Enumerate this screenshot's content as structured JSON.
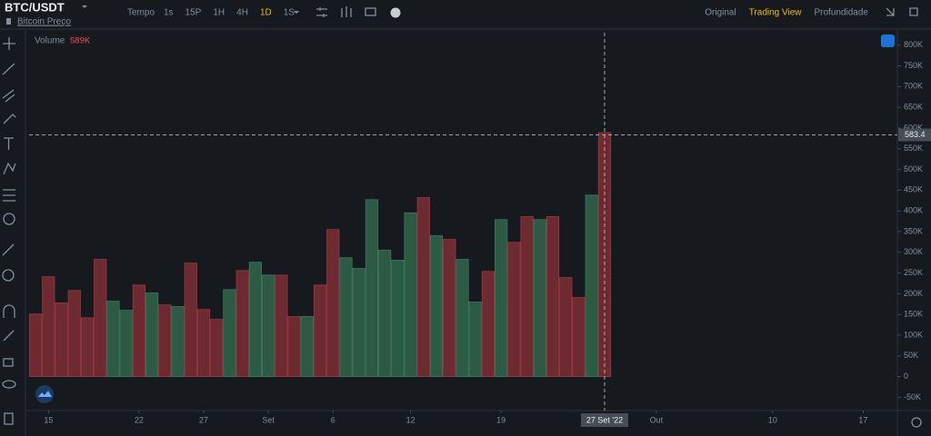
{
  "header": {
    "symbol": "BTC/USDT",
    "subtitle": "Bitcoin Preço",
    "time_label": "Tempo",
    "intervals": [
      "1s",
      "15P",
      "1H",
      "4H",
      "1D",
      "1S"
    ],
    "active_interval": 4,
    "views": [
      "Original",
      "Trading View",
      "Profundidade"
    ],
    "active_view": 1
  },
  "chart_data": {
    "type": "bar",
    "series": [
      {
        "name": "Volume",
        "legend_value": "589K",
        "values": [
          151,
          241,
          178,
          208,
          142,
          283,
          182,
          160,
          221,
          202,
          173,
          169,
          274,
          162,
          138,
          210,
          256,
          276,
          245,
          245,
          145,
          145,
          221,
          355,
          287,
          261,
          427,
          305,
          281,
          395,
          432,
          340,
          331,
          283,
          180,
          254,
          379,
          324,
          386,
          379,
          386,
          239,
          191,
          438,
          589
        ],
        "colors": [
          "#6e2a31",
          "#6e2a31",
          "#6e2a31",
          "#6e2a31",
          "#6e2a31",
          "#6e2a31",
          "#2d5a44",
          "#2d5a44",
          "#6e2a31",
          "#2d5a44",
          "#6e2a31",
          "#2d5a44",
          "#6e2a31",
          "#6e2a31",
          "#6e2a31",
          "#2d5a44",
          "#6e2a31",
          "#2d5a44",
          "#2d5a44",
          "#6e2a31",
          "#6e2a31",
          "#2d5a44",
          "#6e2a31",
          "#6e2a31",
          "#2d5a44",
          "#2d5a44",
          "#2d5a44",
          "#2d5a44",
          "#2d5a44",
          "#2d5a44",
          "#6e2a31",
          "#2d5a44",
          "#6e2a31",
          "#2d5a44",
          "#2d5a44",
          "#6e2a31",
          "#2d5a44",
          "#6e2a31",
          "#6e2a31",
          "#2d5a44",
          "#6e2a31",
          "#6e2a31",
          "#6e2a31",
          "#2d5a44",
          "#6e2a31"
        ]
      }
    ],
    "xlim": [
      -0.5,
      66.5
    ],
    "xticks": [
      {
        "value": 1,
        "label": "15"
      },
      {
        "value": 8,
        "label": "22"
      },
      {
        "value": 13,
        "label": "27"
      },
      {
        "value": 18,
        "label": "Set"
      },
      {
        "value": 23,
        "label": "6"
      },
      {
        "value": 29,
        "label": "12"
      },
      {
        "value": 36,
        "label": "19"
      },
      {
        "value": 44,
        "label": "27 Set '22"
      },
      {
        "value": 48,
        "label": "Out"
      },
      {
        "value": 57,
        "label": "10"
      },
      {
        "value": 64,
        "label": "17"
      }
    ],
    "highlight_xtick": 7,
    "ylim": [
      -60,
      830
    ],
    "yticks": [
      {
        "value": 800,
        "label": "800K"
      },
      {
        "value": 750,
        "label": "750K"
      },
      {
        "value": 700,
        "label": "700K"
      },
      {
        "value": 650,
        "label": "650K"
      },
      {
        "value": 600,
        "label": "600K"
      },
      {
        "value": 550,
        "label": "550K"
      },
      {
        "value": 500,
        "label": "500K"
      },
      {
        "value": 450,
        "label": "450K"
      },
      {
        "value": 400,
        "label": "400K"
      },
      {
        "value": 350,
        "label": "350K"
      },
      {
        "value": 300,
        "label": "300K"
      },
      {
        "value": 250,
        "label": "250K"
      },
      {
        "value": 200,
        "label": "200K"
      },
      {
        "value": 150,
        "label": "150K"
      },
      {
        "value": 100,
        "label": "100K"
      },
      {
        "value": 50,
        "label": "50K"
      },
      0,
      {
        "value": -50,
        "label": "-50K"
      }
    ],
    "crosshair_y": 583.4
  }
}
